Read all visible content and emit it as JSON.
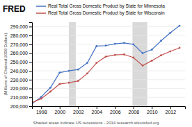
{
  "chart_data": {
    "type": "line",
    "title": "FRED",
    "y_label": "(Millions of Chained 2009 Dollars)",
    "annotations": [
      "Shaded areas indicate US recessions - 2014 research.stlouisfed.org"
    ],
    "x": [
      1997,
      1998,
      1999,
      2000,
      2001,
      2002,
      2003,
      2004,
      2005,
      2006,
      2007,
      2008,
      2009,
      2010,
      2011,
      2012,
      2013
    ],
    "series": [
      {
        "name": "Real Total Gross Domestic Product by State for Minnesota",
        "color": "#4472c4",
        "marker": "circle",
        "line_style": "solid",
        "values": [
          203000,
          210500,
          221000,
          238000,
          240000,
          241500,
          249000,
          268000,
          268500,
          270500,
          271500,
          270000,
          260000,
          264000,
          274000,
          283000,
          291000
        ]
      },
      {
        "name": "Real Total Gross Domestic Product by State for Wisconsin",
        "color": "#c0504d",
        "marker": "circle",
        "line_style": "solid",
        "values": [
          204000,
          208500,
          216500,
          225000,
          226500,
          228500,
          237000,
          249000,
          256000,
          258000,
          258500,
          255000,
          246000,
          251500,
          257500,
          262000,
          266000
        ]
      }
    ],
    "spans": [
      [
        2001.0,
        2001.75
      ],
      [
        2007.9,
        2009.5
      ]
    ],
    "xlim": [
      1997,
      2013.6
    ],
    "xticks": [
      1998,
      2000,
      2002,
      2004,
      2006,
      2008,
      2010,
      2012
    ],
    "ylim": [
      200000,
      295000
    ],
    "yticks": [
      {
        "value": 200000,
        "label": "200,000"
      },
      {
        "value": 210000,
        "label": "210,000"
      },
      {
        "value": 220000,
        "label": "220,000"
      },
      {
        "value": 230000,
        "label": "230,000"
      },
      {
        "value": 240000,
        "label": "240,000"
      },
      {
        "value": 250000,
        "label": "250,000"
      },
      {
        "value": 260000,
        "label": "260,000"
      },
      {
        "value": 270000,
        "label": "270,000"
      },
      {
        "value": 280000,
        "label": "280,000"
      },
      {
        "value": 290000,
        "label": "290,000"
      }
    ],
    "grid": true,
    "legend": "top"
  }
}
